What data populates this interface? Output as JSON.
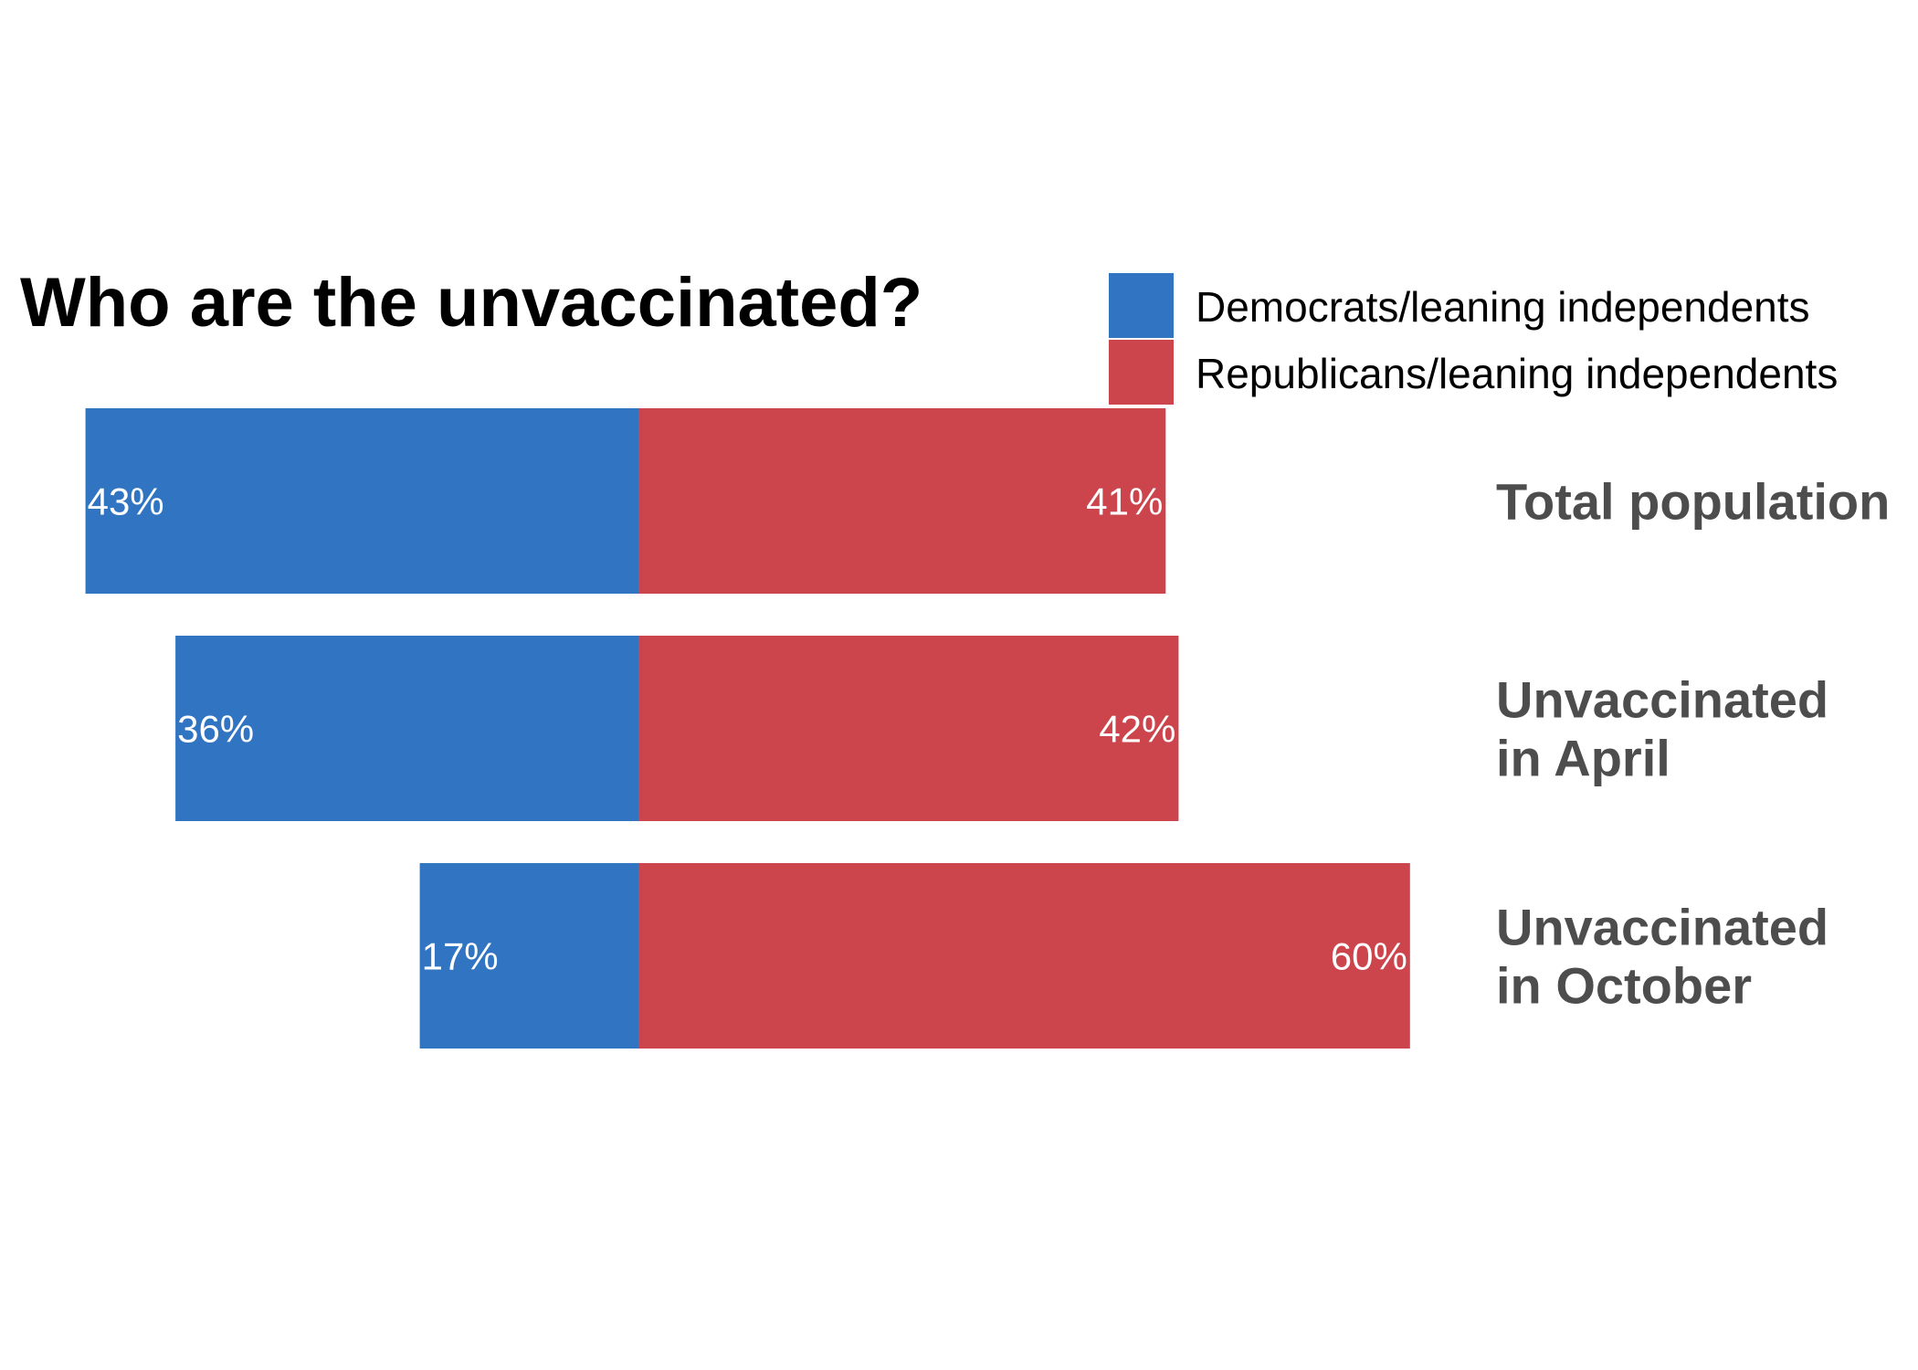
{
  "chart_data": {
    "type": "bar",
    "orientation": "horizontal-diverging",
    "title": "Who are the unvaccinated?",
    "categories": [
      [
        "Total population"
      ],
      [
        "Unvaccinated",
        "in April"
      ],
      [
        "Unvaccinated",
        "in October"
      ]
    ],
    "series": [
      {
        "name": "Democrats/leaning independents",
        "color": "#3074c2",
        "values": [
          43,
          36,
          17
        ],
        "labels": [
          "43%",
          "36%",
          "17%"
        ]
      },
      {
        "name": "Republicans/leaning independents",
        "color": "#cc454c",
        "values": [
          41,
          42,
          60
        ],
        "labels": [
          "41%",
          "42%",
          "60%"
        ]
      }
    ],
    "unit": "%",
    "legend_position": "top-right",
    "grid": false,
    "axes_visible": false
  }
}
